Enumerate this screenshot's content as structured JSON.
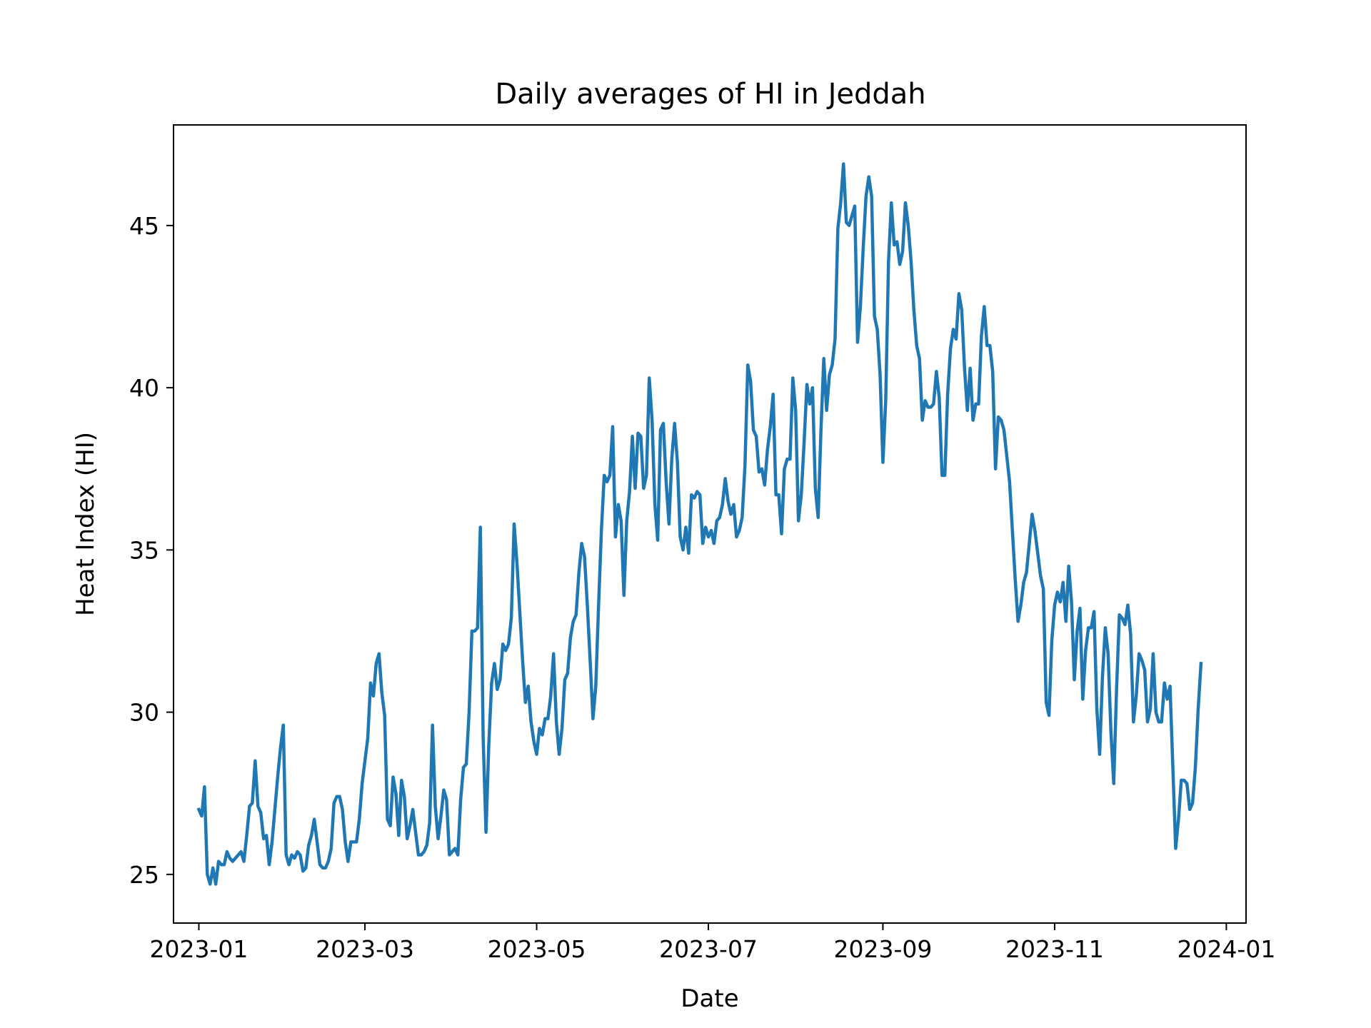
{
  "chart_data": {
    "type": "line",
    "title": "Daily averages of HI in Jeddah",
    "xlabel": "Date",
    "ylabel": "Heat Index (HI)",
    "x_ticks": [
      "2023-01",
      "2023-03",
      "2023-05",
      "2023-07",
      "2023-09",
      "2023-11",
      "2024-01"
    ],
    "y_ticks": [
      "25",
      "30",
      "35",
      "40",
      "45"
    ],
    "xlim": [
      "2022-12-23",
      "2024-01-08"
    ],
    "ylim": [
      23.5,
      48.1
    ],
    "grid": false,
    "line_color": "#1f77b4",
    "series": [
      {
        "x_start": "2023-01-01",
        "x_step_days": 1,
        "values": [
          27.0,
          26.8,
          27.7,
          25.0,
          24.7,
          25.2,
          24.7,
          25.4,
          25.3,
          25.3,
          25.7,
          25.5,
          25.4,
          25.5,
          25.6,
          25.7,
          25.4,
          26.2,
          27.1,
          27.2,
          28.5,
          27.1,
          26.9,
          26.1,
          26.2,
          25.3,
          26.0,
          27.0,
          28.0,
          28.9,
          29.6,
          25.6,
          25.3,
          25.6,
          25.5,
          25.7,
          25.6,
          25.1,
          25.2,
          25.9,
          26.2,
          26.7,
          26.0,
          25.3,
          25.2,
          25.2,
          25.4,
          25.8,
          27.2,
          27.4,
          27.4,
          27.0,
          26.0,
          25.4,
          26.0,
          26.0,
          26.0,
          26.7,
          27.8,
          28.5,
          29.2,
          30.9,
          30.5,
          31.5,
          31.8,
          30.6,
          29.9,
          26.7,
          26.5,
          28.0,
          27.5,
          26.2,
          27.9,
          27.4,
          26.1,
          26.5,
          27.0,
          26.3,
          25.6,
          25.6,
          25.7,
          25.9,
          26.6,
          29.6,
          27.1,
          26.1,
          26.8,
          27.6,
          27.3,
          25.6,
          25.7,
          25.8,
          25.6,
          27.3,
          28.3,
          28.4,
          30.0,
          32.5,
          32.5,
          32.6,
          35.7,
          29.2,
          26.3,
          29.0,
          30.9,
          31.5,
          30.7,
          31.0,
          32.1,
          31.9,
          32.1,
          32.9,
          35.8,
          34.6,
          33.1,
          31.6,
          30.3,
          30.8,
          29.7,
          29.1,
          28.7,
          29.5,
          29.3,
          29.8,
          29.8,
          30.5,
          31.8,
          29.7,
          28.7,
          29.5,
          31.0,
          31.2,
          32.3,
          32.8,
          33.0,
          34.3,
          35.2,
          34.8,
          33.3,
          31.6,
          29.8,
          30.8,
          33.3,
          35.6,
          37.3,
          37.1,
          37.3,
          38.8,
          35.4,
          36.4,
          35.9,
          33.6,
          35.9,
          36.8,
          38.5,
          36.9,
          38.6,
          38.5,
          36.9,
          37.3,
          40.3,
          39.0,
          36.4,
          35.3,
          38.7,
          38.9,
          37.1,
          35.8,
          37.8,
          38.9,
          37.7,
          35.4,
          35.0,
          35.7,
          34.9,
          36.7,
          36.6,
          36.8,
          36.7,
          35.2,
          35.7,
          35.4,
          35.6,
          35.2,
          35.9,
          36.0,
          36.4,
          37.2,
          36.5,
          36.1,
          36.4,
          35.4,
          35.6,
          36.0,
          37.6,
          40.7,
          40.2,
          38.7,
          38.5,
          37.4,
          37.5,
          37.0,
          38.1,
          38.8,
          39.8,
          36.7,
          36.7,
          35.5,
          37.5,
          37.8,
          37.8,
          40.3,
          39.3,
          35.9,
          36.7,
          38.3,
          40.1,
          39.5,
          40.0,
          36.9,
          36.0,
          38.7,
          40.9,
          39.3,
          40.4,
          40.7,
          41.5,
          44.9,
          45.7,
          46.9,
          45.1,
          45.0,
          45.3,
          45.6,
          41.4,
          42.5,
          44.3,
          45.9,
          46.5,
          45.9,
          42.2,
          41.8,
          40.4,
          37.7,
          39.6,
          43.9,
          45.7,
          44.4,
          44.5,
          43.8,
          44.2,
          45.7,
          45.0,
          43.9,
          42.4,
          41.3,
          40.9,
          39.0,
          39.6,
          39.4,
          39.4,
          39.5,
          40.5,
          39.7,
          37.3,
          37.3,
          39.8,
          41.2,
          41.8,
          41.5,
          42.9,
          42.4,
          40.6,
          39.3,
          40.6,
          39.0,
          39.5,
          39.5,
          41.6,
          42.5,
          41.3,
          41.3,
          40.5,
          37.5,
          39.1,
          39.0,
          38.7,
          37.9,
          37.1,
          35.6,
          34.1,
          32.8,
          33.3,
          34.0,
          34.3,
          35.2,
          36.1,
          35.6,
          34.9,
          34.2,
          33.8,
          30.3,
          29.9,
          32.2,
          33.3,
          33.7,
          33.4,
          34.0,
          32.8,
          34.5,
          33.4,
          31.0,
          32.5,
          33.2,
          30.4,
          31.9,
          32.6,
          32.6,
          33.1,
          30.1,
          28.7,
          31.1,
          32.6,
          31.8,
          29.4,
          27.8,
          30.7,
          33.0,
          32.9,
          32.7,
          33.3,
          32.4,
          29.7,
          30.5,
          31.8,
          31.6,
          31.3,
          29.7,
          30.1,
          31.8,
          30.0,
          29.7,
          29.7,
          30.9,
          30.4,
          30.8,
          28.3,
          25.8,
          26.7,
          27.9,
          27.9,
          27.8,
          27.0,
          27.2,
          28.3,
          30.1,
          31.5
        ]
      }
    ]
  }
}
